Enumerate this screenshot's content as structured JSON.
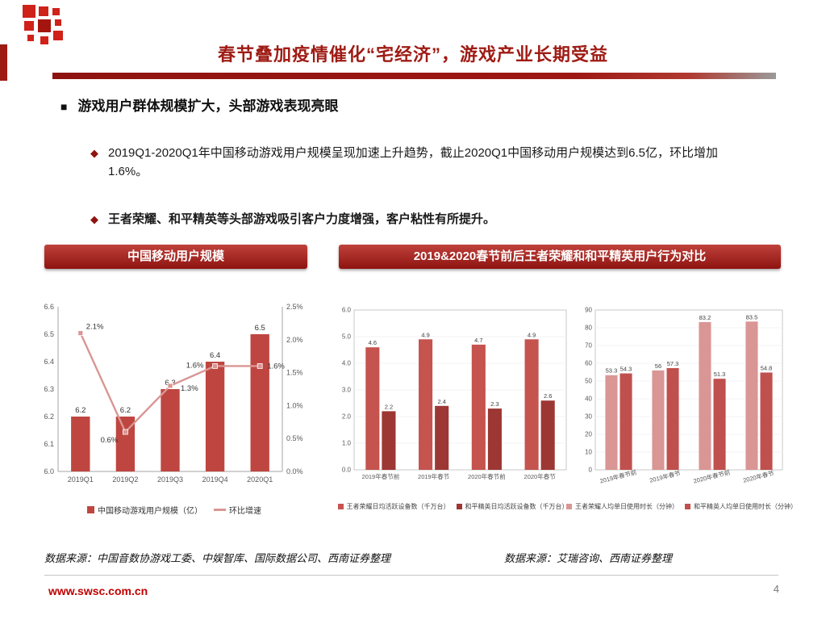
{
  "slide": {
    "title": "春节叠加疫情催化“宅经济”，游戏产业长期受益",
    "page_number": "4",
    "website": "www.swsc.com.cn"
  },
  "markers": {
    "heading": "■",
    "diamond": "◆"
  },
  "content": {
    "section_heading": "游戏用户群体规模扩大，头部游戏表现亮眼",
    "bullet_1": "2019Q1-2020Q1年中国移动游戏用户规模呈现加速上升趋势，截止2020Q1中国移动用户规模达到6.5亿，环比增加1.6%。",
    "bullet_2": "王者荣耀、和平精英等头部游戏吸引客户力度增强，客户粘性有所提升。"
  },
  "chart_headers": {
    "left": "中国移动用户规模",
    "right": "2019&2020春节前后王者荣耀和和平精英用户行为对比"
  },
  "sources": {
    "left": "数据来源：中国音数协游戏工委、中娱智库、国际数据公司、西南证券整理",
    "right": "数据来源：艾瑞咨询、西南证券整理"
  },
  "colors": {
    "accent_red": "#9e1b14",
    "header_gradient_top": "#c0423c",
    "header_gradient_bottom": "#8e1310",
    "website_red": "#c00000",
    "logo_red": "#cf2219"
  },
  "chart_data": [
    {
      "type": "bar+line",
      "title": "中国移动用户规模",
      "categories": [
        "2019Q1",
        "2019Q2",
        "2019Q3",
        "2019Q4",
        "2020Q1"
      ],
      "bar_series": {
        "name": "中国移动游戏用户规模（亿）",
        "values": [
          6.2,
          6.2,
          6.3,
          6.4,
          6.5
        ],
        "color": "#bf4640"
      },
      "line_series": {
        "name": "环比增速",
        "values": [
          2.1,
          0.6,
          1.3,
          1.6,
          1.6
        ],
        "labels": [
          "2.1%",
          "0.6%",
          "1.3%",
          "1.6%",
          "1.6%"
        ],
        "color": "#d99694"
      },
      "y_left": {
        "min": 6.0,
        "max": 6.6,
        "step": 0.1
      },
      "y_right": {
        "min": 0.0,
        "max": 2.5,
        "step": 0.5,
        "suffix": "%"
      },
      "legend_position": "bottom",
      "grid": false
    },
    {
      "type": "bar",
      "title": "2019&2020春节前后王者荣耀和和平精英日均活跃设备数",
      "categories": [
        "2019年春节前",
        "2019年春节",
        "2020年春节前",
        "2020年春节"
      ],
      "series": [
        {
          "name": "王者荣耀日均活跃设备数（千万台）",
          "values": [
            4.6,
            4.9,
            4.7,
            4.9
          ],
          "color": "#c5534e"
        },
        {
          "name": "和平精英日均活跃设备数（千万台）",
          "values": [
            2.2,
            2.4,
            2.3,
            2.6
          ],
          "color": "#9c3734"
        }
      ],
      "y": {
        "min": 0,
        "max": 6,
        "step": 1,
        "decimals": 1
      },
      "legend_position": "bottom",
      "grid": false
    },
    {
      "type": "bar",
      "title": "2019&2020春节前后王者荣耀和和平精英人均单日使用时长",
      "categories": [
        "2019年春节前",
        "2019年春节",
        "2020年春节前",
        "2020年春节"
      ],
      "series": [
        {
          "name": "王者荣耀人均单日使用时长（分钟）",
          "values": [
            53.3,
            56,
            83.2,
            83.5
          ],
          "color": "#d99694"
        },
        {
          "name": "和平精英人均单日使用时长（分钟）",
          "values": [
            54.3,
            57.3,
            51.3,
            54.8
          ],
          "color": "#c0504d"
        }
      ],
      "y": {
        "min": 0,
        "max": 90,
        "step": 10,
        "decimals": 0
      },
      "legend_position": "bottom",
      "grid": false
    }
  ]
}
